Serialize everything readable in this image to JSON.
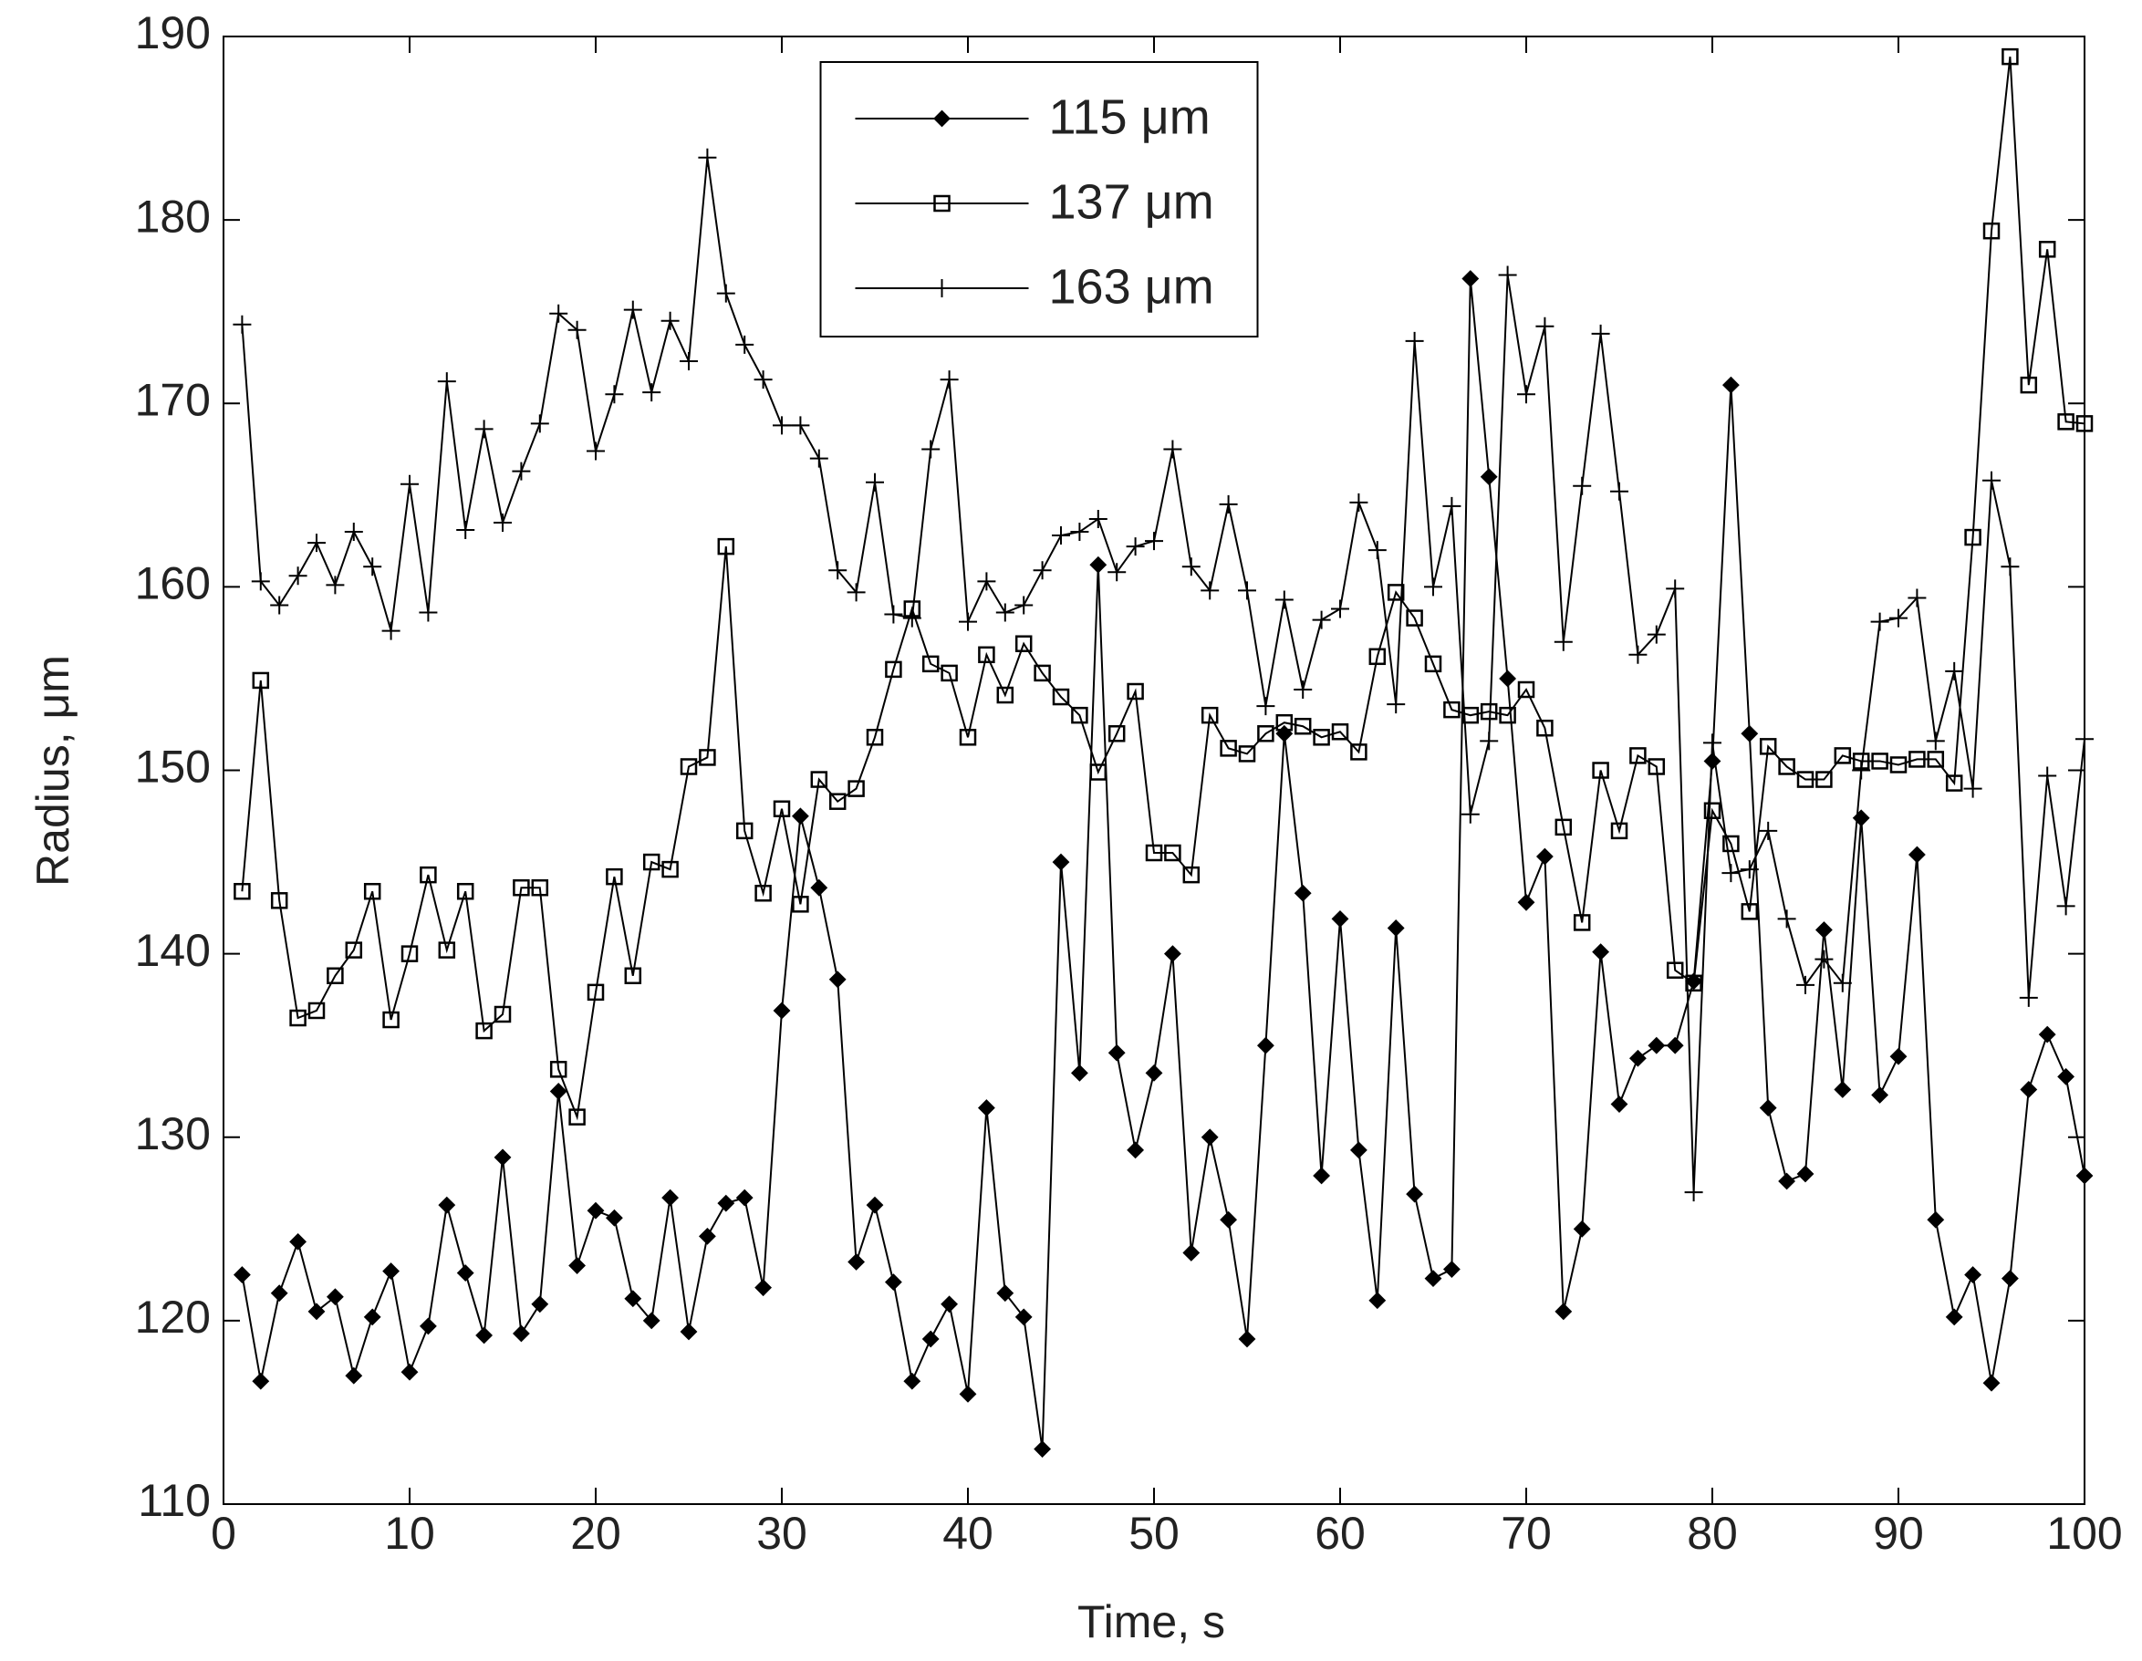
{
  "chart_data": {
    "type": "line",
    "xlabel": "Time, s",
    "ylabel": "Radius, μm",
    "x": [
      1,
      2,
      3,
      4,
      5,
      6,
      7,
      8,
      9,
      10,
      11,
      12,
      13,
      14,
      15,
      16,
      17,
      18,
      19,
      20,
      21,
      22,
      23,
      24,
      25,
      26,
      27,
      28,
      29,
      30,
      31,
      32,
      33,
      34,
      35,
      36,
      37,
      38,
      39,
      40,
      41,
      42,
      43,
      44,
      45,
      46,
      47,
      48,
      49,
      50,
      51,
      52,
      53,
      54,
      55,
      56,
      57,
      58,
      59,
      60,
      61,
      62,
      63,
      64,
      65,
      66,
      67,
      68,
      69,
      70,
      71,
      72,
      73,
      74,
      75,
      76,
      77,
      78,
      79,
      80,
      81,
      82,
      83,
      84,
      85,
      86,
      87,
      88,
      89,
      90,
      91,
      92,
      93,
      94,
      95,
      96,
      97,
      98,
      99,
      100
    ],
    "series": [
      {
        "name": "115 μm",
        "color": "#000000",
        "marker": "dot",
        "values": [
          122.5,
          116.7,
          121.5,
          124.3,
          120.5,
          121.3,
          117,
          120.2,
          122.7,
          117.2,
          119.7,
          126.3,
          122.6,
          119.2,
          128.9,
          119.3,
          120.9,
          132.5,
          123,
          126,
          125.6,
          121.2,
          120,
          126.7,
          119.4,
          124.6,
          126.4,
          126.7,
          121.8,
          136.9,
          147.5,
          143.6,
          138.6,
          123.2,
          126.3,
          122.1,
          116.7,
          119,
          120.9,
          116,
          131.6,
          121.5,
          120.2,
          113,
          145,
          133.5,
          161.2,
          134.6,
          129.3,
          133.5,
          140,
          123.7,
          130,
          125.5,
          119,
          135,
          152,
          143.3,
          127.9,
          141.9,
          129.3,
          121.1,
          141.4,
          126.9,
          122.3,
          122.8,
          176.8,
          166,
          155,
          142.8,
          145.3,
          120.5,
          125,
          140.1,
          131.8,
          134.3,
          135,
          135,
          138.5,
          150.5,
          171,
          152,
          131.6,
          127.6,
          128,
          141.3,
          132.6,
          147.4,
          132.3,
          134.4,
          145.4,
          125.5,
          120.2,
          122.5,
          116.6,
          122.3,
          132.6,
          135.6,
          133.3,
          127.9
        ]
      },
      {
        "name": "137 μm",
        "color": "#000000",
        "marker": "square",
        "values": [
          143.4,
          154.9,
          142.9,
          136.5,
          136.9,
          138.8,
          140.2,
          143.4,
          136.4,
          140,
          144.3,
          140.2,
          143.4,
          135.8,
          136.7,
          143.6,
          143.6,
          133.7,
          131.1,
          137.9,
          144.2,
          138.8,
          145,
          144.6,
          150.2,
          150.7,
          162.2,
          146.7,
          143.3,
          147.9,
          142.7,
          149.5,
          148.3,
          149,
          151.8,
          155.5,
          158.8,
          155.8,
          155.3,
          151.8,
          156.3,
          154.1,
          156.9,
          155.3,
          154,
          153,
          149.9,
          152,
          154.3,
          145.5,
          145.5,
          144.3,
          153,
          151.2,
          150.9,
          152,
          152.6,
          152.4,
          151.8,
          152.1,
          151,
          156.2,
          159.7,
          158.3,
          155.8,
          153.3,
          153,
          153.2,
          153,
          154.4,
          152.3,
          146.9,
          141.7,
          150,
          146.7,
          150.8,
          150.2,
          139.1,
          138.4,
          147.8,
          146,
          142.3,
          151.3,
          150.2,
          149.5,
          149.5,
          150.8,
          150.5,
          150.5,
          150.3,
          150.6,
          150.6,
          149.3,
          162.7,
          179.4,
          188.9,
          171,
          178.4,
          169,
          168.9
        ]
      },
      {
        "name": "163 μm",
        "color": "#000000",
        "marker": "plus",
        "values": [
          174.3,
          160.3,
          159,
          160.6,
          162.4,
          160.1,
          163,
          161.1,
          157.6,
          165.6,
          158.6,
          171.2,
          163.1,
          168.6,
          163.5,
          166.3,
          168.9,
          174.9,
          174,
          167.4,
          170.5,
          175.1,
          170.6,
          174.5,
          172.3,
          183.4,
          176,
          173.2,
          171.3,
          168.8,
          168.8,
          167,
          160.9,
          159.7,
          165.7,
          158.5,
          158.3,
          167.5,
          171.3,
          158.1,
          160.3,
          158.6,
          159,
          160.9,
          162.8,
          163,
          163.7,
          160.8,
          162.2,
          162.5,
          167.5,
          161.1,
          159.8,
          164.5,
          159.8,
          153.5,
          159.3,
          154.4,
          158.2,
          158.8,
          164.6,
          162,
          153.6,
          173.4,
          160,
          164.4,
          147.6,
          151.6,
          177,
          170.5,
          174.2,
          157,
          165.5,
          173.8,
          165.2,
          156.3,
          157.4,
          159.9,
          127,
          151.5,
          144.4,
          144.6,
          146.7,
          141.9,
          138.3,
          139.7,
          138.4,
          150,
          158.1,
          158.3,
          159.4,
          151.6,
          155.4,
          149,
          165.8,
          161.1,
          137.6,
          149.7,
          142.6,
          151.7
        ]
      }
    ],
    "xlim": [
      0,
      100
    ],
    "xticks": [
      0,
      10,
      20,
      30,
      40,
      50,
      60,
      70,
      80,
      90,
      100
    ],
    "ylim": [
      110,
      190
    ],
    "yticks": [
      110,
      120,
      130,
      140,
      150,
      160,
      170,
      180,
      190
    ],
    "grid": false,
    "legend": "upper center"
  }
}
